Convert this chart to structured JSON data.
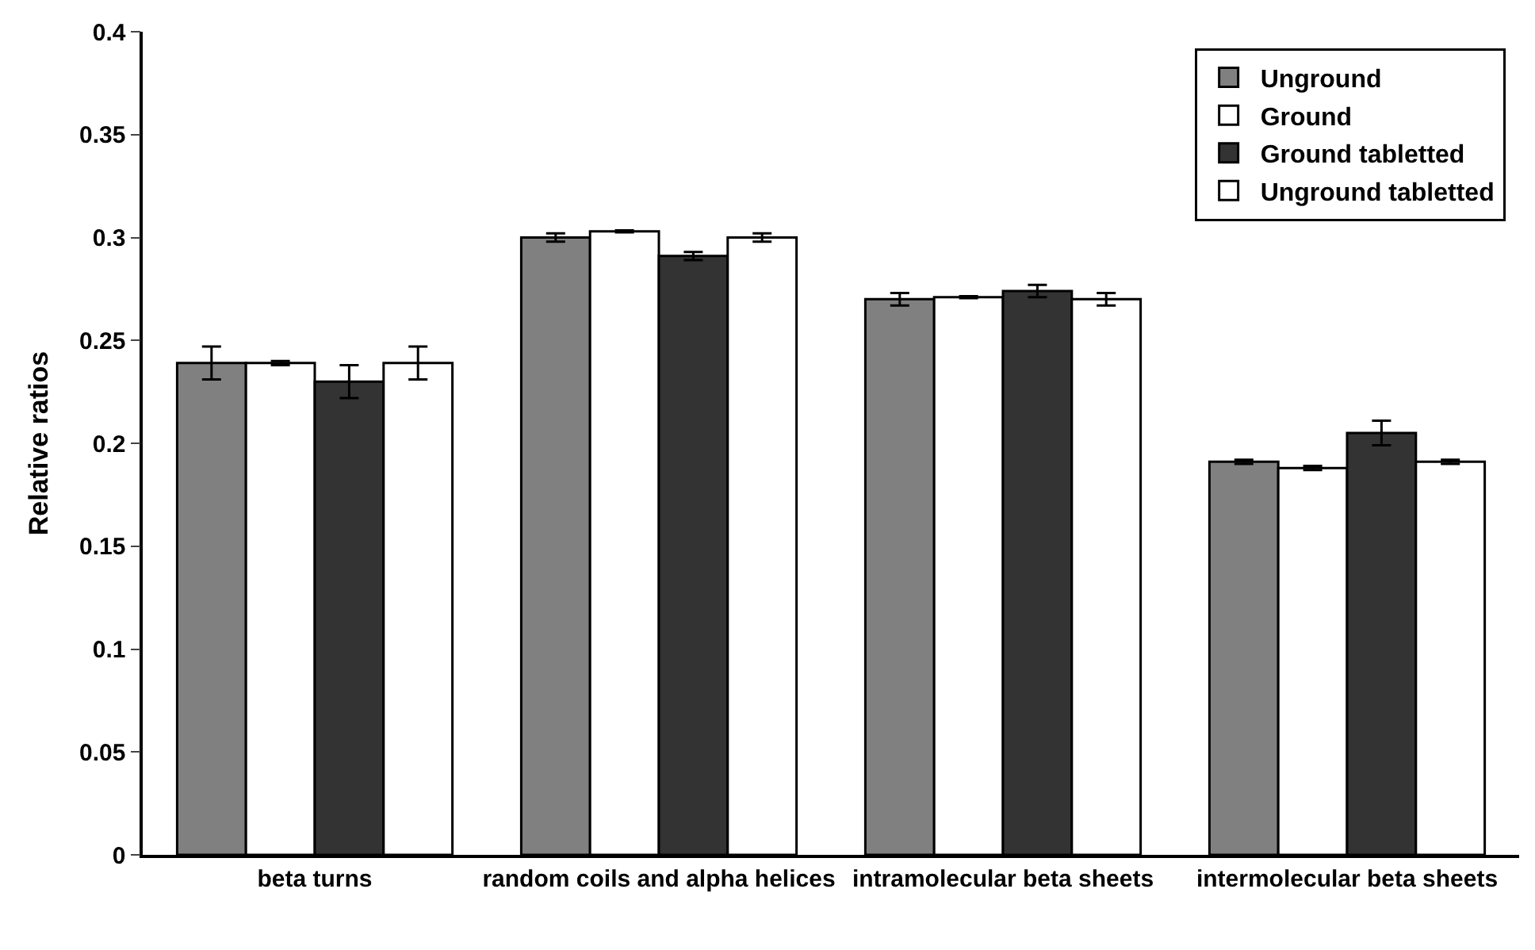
{
  "chart_data": {
    "type": "bar",
    "ylabel": "Relative ratios",
    "categories": [
      "beta turns",
      "random coils and alpha helices",
      "intramolecular beta sheets",
      "intermolecular beta sheets"
    ],
    "series": [
      {
        "name": "Unground",
        "color": "#808080",
        "values": [
          0.239,
          0.3,
          0.27,
          0.191
        ],
        "errors": [
          0.008,
          0.002,
          0.003,
          0.001
        ]
      },
      {
        "name": "Ground",
        "color": "#ffffff",
        "values": [
          0.239,
          0.303,
          0.271,
          0.188
        ],
        "errors": [
          0.001,
          0.0005,
          0.0005,
          0.001
        ]
      },
      {
        "name": "Ground tabletted",
        "color": "#333333",
        "values": [
          0.23,
          0.291,
          0.274,
          0.205
        ],
        "errors": [
          0.008,
          0.002,
          0.003,
          0.006
        ]
      },
      {
        "name": "Unground tabletted",
        "color": "#ffffff",
        "values": [
          0.239,
          0.3,
          0.27,
          0.191
        ],
        "errors": [
          0.008,
          0.002,
          0.003,
          0.001
        ]
      }
    ],
    "ylim": [
      0,
      0.4
    ],
    "yticks": [
      0,
      0.05,
      0.1,
      0.15,
      0.2,
      0.25,
      0.3,
      0.35,
      0.4
    ],
    "legend": "top right"
  }
}
